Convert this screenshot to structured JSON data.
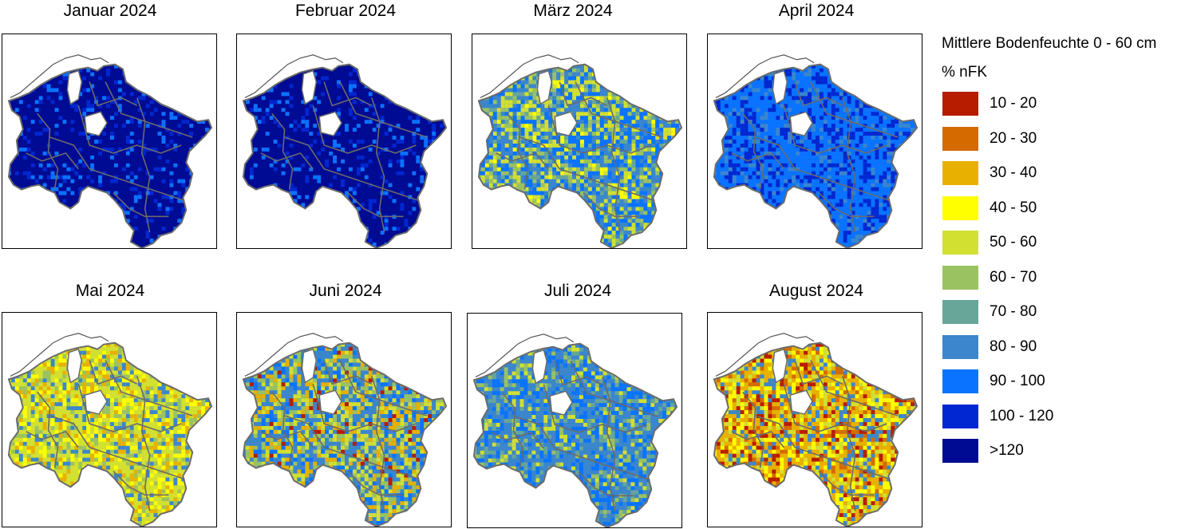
{
  "panels": [
    {
      "title": "Januar 2024",
      "dominant": ">120",
      "mix": {
        ">120": 0.78,
        "100 - 120": 0.12,
        "90 - 100": 0.1
      }
    },
    {
      "title": "Februar 2024",
      "dominant": ">120",
      "mix": {
        ">120": 0.8,
        "100 - 120": 0.1,
        "90 - 100": 0.1
      }
    },
    {
      "title": "März 2024",
      "dominant": "80 - 90",
      "mix": {
        "90 - 100": 0.25,
        "80 - 90": 0.25,
        "70 - 80": 0.1,
        "60 - 70": 0.15,
        "50 - 60": 0.2,
        "40 - 50": 0.05
      }
    },
    {
      "title": "April 2024",
      "dominant": "90 - 100",
      "mix": {
        "90 - 100": 0.55,
        "100 - 120": 0.3,
        "80 - 90": 0.15
      }
    },
    {
      "title": "Mai 2024",
      "dominant": "50 - 60",
      "mix": {
        "50 - 60": 0.35,
        "40 - 50": 0.2,
        "30 - 40": 0.15,
        "60 - 70": 0.15,
        "80 - 90": 0.15
      }
    },
    {
      "title": "Juni 2024",
      "dominant": "80 - 90",
      "mix": {
        "80 - 90": 0.3,
        "90 - 100": 0.15,
        "60 - 70": 0.15,
        "50 - 60": 0.2,
        "30 - 40": 0.15,
        "10 - 20": 0.05
      }
    },
    {
      "title": "Juli 2024",
      "dominant": "80 - 90",
      "mix": {
        "80 - 90": 0.4,
        "90 - 100": 0.25,
        "70 - 80": 0.15,
        "60 - 70": 0.1,
        "50 - 60": 0.1
      }
    },
    {
      "title": "August 2024",
      "dominant": "30 - 40",
      "mix": {
        "30 - 40": 0.3,
        "40 - 50": 0.2,
        "50 - 60": 0.15,
        "80 - 90": 0.15,
        "20 - 30": 0.1,
        "10 - 20": 0.1
      }
    }
  ],
  "legend": {
    "title_line1": "Mittlere Bodenfeuchte 0 - 60 cm",
    "title_line2": "% nFK",
    "items": [
      {
        "label": "10 - 20",
        "color": "#b71c00"
      },
      {
        "label": "20 - 30",
        "color": "#d46a00"
      },
      {
        "label": "30 - 40",
        "color": "#e8b000"
      },
      {
        "label": "40 - 50",
        "color": "#ffff00"
      },
      {
        "label": "50 - 60",
        "color": "#d2e031"
      },
      {
        "label": "60 - 70",
        "color": "#9bc260"
      },
      {
        "label": "70 - 80",
        "color": "#67a698"
      },
      {
        "label": "80 - 90",
        "color": "#3b86cc"
      },
      {
        "label": "90 - 100",
        "color": "#0a73ff"
      },
      {
        "label": "100 - 120",
        "color": "#0027d1"
      },
      {
        "label": ">120",
        "color": "#000b93"
      }
    ]
  },
  "colors": {
    "outline": "#6b6b6b",
    "frame": "#000000"
  }
}
